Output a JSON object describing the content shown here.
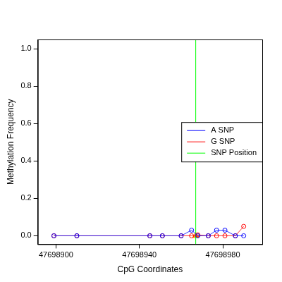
{
  "chart_data": {
    "type": "line",
    "x_label": "CpG Coordinates",
    "y_label": "Methylation Frequency",
    "x": [
      47698899,
      47698910,
      47698945,
      47698951,
      47698960,
      47698965,
      47698968,
      47698973,
      47698977,
      47698981,
      47698986,
      47698990
    ],
    "series": [
      {
        "name": "A SNP",
        "color": "#0000ff",
        "marker": "circle",
        "values": [
          0,
          0,
          0,
          0,
          0,
          0.03,
          0,
          0,
          0.03,
          0.03,
          0,
          0
        ]
      },
      {
        "name": "G SNP",
        "color": "#ff0000",
        "marker": "circle",
        "values": [
          0,
          0,
          0,
          0,
          0,
          0,
          0.005,
          0,
          0,
          0,
          0,
          0.05
        ]
      }
    ],
    "snp_position": {
      "name": "SNP Position",
      "color": "#00ff00",
      "x": 47698967,
      "marker_value": 0,
      "marker_color": "#ffa500",
      "marker": "triangle"
    },
    "xlim": [
      47698891.3,
      47698998.9
    ],
    "xticks": [
      47698900,
      47698940,
      47698980
    ],
    "ylim": [
      -0.045,
      1.049
    ],
    "yticks": [
      {
        "value": 0,
        "label": "0.0"
      },
      0.2,
      0.4,
      0.6,
      0.8,
      {
        "value": 1,
        "label": "1.0"
      }
    ],
    "legend": "right",
    "grid": false
  }
}
